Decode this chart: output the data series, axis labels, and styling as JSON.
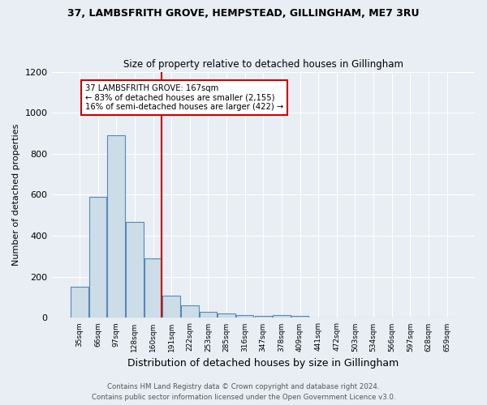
{
  "title1": "37, LAMBSFRITH GROVE, HEMPSTEAD, GILLINGHAM, ME7 3RU",
  "title2": "Size of property relative to detached houses in Gillingham",
  "xlabel": "Distribution of detached houses by size in Gillingham",
  "ylabel": "Number of detached properties",
  "footer1": "Contains HM Land Registry data © Crown copyright and database right 2024.",
  "footer2": "Contains public sector information licensed under the Open Government Licence v3.0.",
  "bin_labels": [
    "35sqm",
    "66sqm",
    "97sqm",
    "128sqm",
    "160sqm",
    "191sqm",
    "222sqm",
    "253sqm",
    "285sqm",
    "316sqm",
    "347sqm",
    "378sqm",
    "409sqm",
    "441sqm",
    "472sqm",
    "503sqm",
    "534sqm",
    "566sqm",
    "597sqm",
    "628sqm",
    "659sqm"
  ],
  "bar_heights": [
    152,
    591,
    891,
    468,
    291,
    107,
    62,
    30,
    20,
    13,
    10,
    13,
    10,
    0,
    0,
    0,
    0,
    0,
    0,
    0,
    0
  ],
  "bar_color": "#ccdde8",
  "bar_edge_color": "#5588bb",
  "vline_color": "#cc0000",
  "vline_x": 4.48,
  "annotation_text": "37 LAMBSFRITH GROVE: 167sqm\n← 83% of detached houses are smaller (2,155)\n16% of semi-detached houses are larger (422) →",
  "annotation_box_color": "#ffffff",
  "annotation_border_color": "#cc0000",
  "ylim": [
    0,
    1200
  ],
  "yticks": [
    0,
    200,
    400,
    600,
    800,
    1000,
    1200
  ],
  "background_color": "#e8eef4",
  "plot_bg_color": "#e8eef4",
  "grid_color": "#ffffff"
}
